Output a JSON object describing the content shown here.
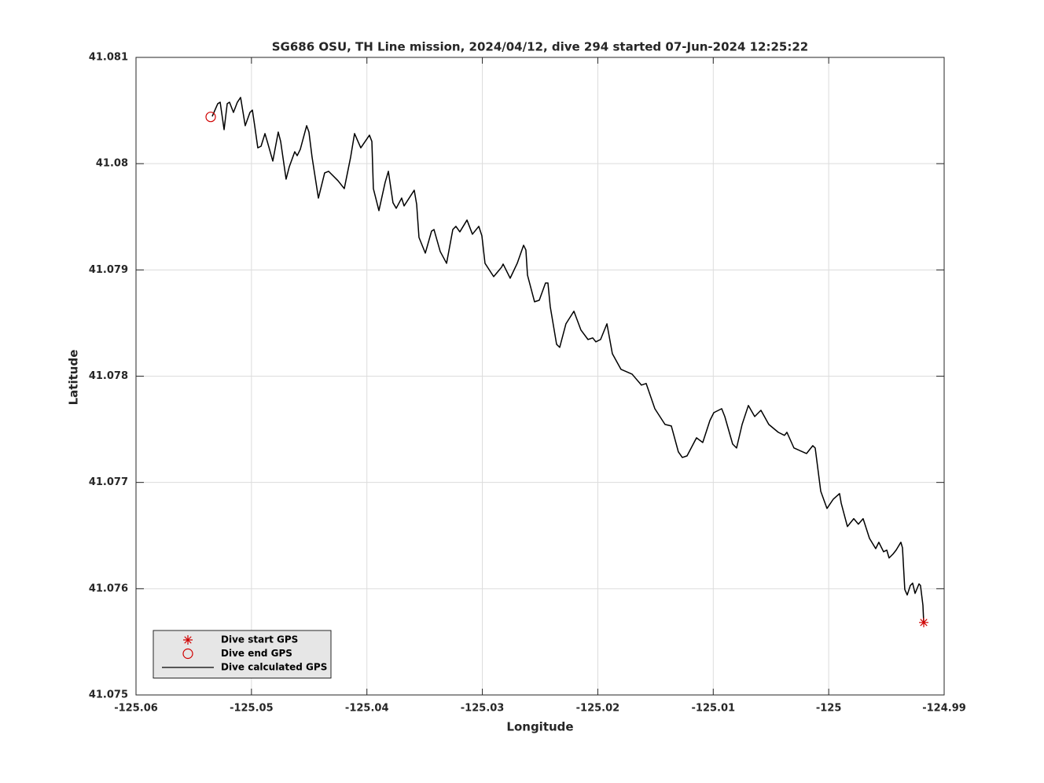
{
  "chart_data": {
    "type": "line",
    "title": "SG686 OSU, TH Line mission, 2024/04/12, dive 294 started 07-Jun-2024 12:25:22",
    "xlabel": "Longitude",
    "ylabel": "Latitude",
    "xlim": [
      -125.06,
      -124.99
    ],
    "xticks": [
      -125.06,
      -125.05,
      -125.04,
      -125.03,
      -125.02,
      -125.01,
      -125,
      -124.99
    ],
    "ylim": [
      41.075,
      41.081
    ],
    "yticks": [
      41.075,
      41.076,
      41.077,
      41.078,
      41.079,
      41.08,
      41.081
    ],
    "grid": true,
    "legend": "lower left",
    "series": [
      {
        "name": "Dive start GPS",
        "color": "#d00000",
        "marker": "*",
        "x": [
          -124.99177
        ],
        "values": [
          41.075682
        ]
      },
      {
        "name": "Dive end GPS",
        "color": "#d00000",
        "marker": "o",
        "x": [
          -125.05353
        ],
        "values": [
          41.08044
        ]
      },
      {
        "name": "Dive calculated GPS",
        "color": "#000000",
        "marker": "line",
        "x": [
          -125.0534,
          -125.05292,
          -125.05271,
          -125.05237,
          -125.0521,
          -125.0519,
          -125.05156,
          -125.05122,
          -125.05094,
          -125.05054,
          -125.05013,
          -125.04992,
          -125.04972,
          -125.04945,
          -125.04917,
          -125.04883,
          -125.04863,
          -125.04815,
          -125.04768,
          -125.04747,
          -125.047,
          -125.04672,
          -125.04625,
          -125.04604,
          -125.04577,
          -125.04522,
          -125.04502,
          -125.04475,
          -125.0442,
          -125.04366,
          -125.04332,
          -125.0425,
          -125.04196,
          -125.04141,
          -125.04107,
          -125.04053,
          -125.03978,
          -125.03957,
          -125.03944,
          -125.03896,
          -125.03842,
          -125.03814,
          -125.03774,
          -125.03746,
          -125.03699,
          -125.03678,
          -125.0359,
          -125.03569,
          -125.03549,
          -125.03494,
          -125.0344,
          -125.03419,
          -125.03365,
          -125.0331,
          -125.03256,
          -125.03229,
          -125.03195,
          -125.03133,
          -125.03086,
          -125.03031,
          -125.03004,
          -125.02977,
          -125.02902,
          -125.02834,
          -125.0282,
          -125.02759,
          -125.02698,
          -125.02643,
          -125.02623,
          -125.02609,
          -125.02548,
          -125.02507,
          -125.02453,
          -125.02432,
          -125.02412,
          -125.02357,
          -125.0233,
          -125.02276,
          -125.02207,
          -125.02146,
          -125.02085,
          -125.02044,
          -125.02017,
          -125.01976,
          -125.01921,
          -125.01901,
          -125.01874,
          -125.01799,
          -125.01703,
          -125.01622,
          -125.01581,
          -125.01506,
          -125.01418,
          -125.01363,
          -125.01302,
          -125.01268,
          -125.01227,
          -125.01145,
          -125.01091,
          -125.01029,
          -125.00995,
          -125.00927,
          -125.009,
          -125.00832,
          -125.00798,
          -125.0075,
          -125.00696,
          -125.00641,
          -125.00587,
          -125.00519,
          -125.00437,
          -125.00383,
          -125.00362,
          -125.00301,
          -125.00192,
          -125.00138,
          -125.00117,
          -125.00069,
          -125.00015,
          -124.9996,
          -124.99906,
          -124.99892,
          -124.99838,
          -124.99783,
          -124.99743,
          -124.99702,
          -124.99647,
          -124.99593,
          -124.99566,
          -124.99525,
          -124.99497,
          -124.99477,
          -124.99443,
          -124.99416,
          -124.99375,
          -124.99361,
          -124.99341,
          -124.9932,
          -124.99293,
          -124.99273,
          -124.99252,
          -124.99218,
          -124.99205,
          -124.99184,
          -124.99177
        ],
        "values": [
          41.080445,
          41.080564,
          41.080578,
          41.08032,
          41.080564,
          41.080578,
          41.080482,
          41.080578,
          41.080623,
          41.080357,
          41.080482,
          41.080504,
          41.080357,
          41.080149,
          41.080164,
          41.080283,
          41.080209,
          41.080024,
          41.080297,
          41.080209,
          41.079854,
          41.079972,
          41.080112,
          41.080075,
          41.080135,
          41.080357,
          41.080297,
          41.080061,
          41.079676,
          41.079913,
          41.079928,
          41.079839,
          41.079765,
          41.080061,
          41.080283,
          41.080149,
          41.080268,
          41.080209,
          41.079765,
          41.079558,
          41.079824,
          41.079928,
          41.079632,
          41.07958,
          41.079676,
          41.079602,
          41.07975,
          41.079617,
          41.079306,
          41.079158,
          41.079365,
          41.07938,
          41.079173,
          41.079062,
          41.07938,
          41.07941,
          41.079358,
          41.079469,
          41.079336,
          41.07941,
          41.079321,
          41.079062,
          41.078937,
          41.079025,
          41.079055,
          41.078922,
          41.079062,
          41.079232,
          41.079188,
          41.078951,
          41.0787,
          41.078715,
          41.078877,
          41.078877,
          41.078655,
          41.0783,
          41.078271,
          41.078493,
          41.078611,
          41.078434,
          41.078345,
          41.07836,
          41.078323,
          41.078345,
          41.078493,
          41.078374,
          41.078212,
          41.078064,
          41.078019,
          41.077916,
          41.077931,
          41.077694,
          41.077546,
          41.077531,
          41.077287,
          41.077235,
          41.07725,
          41.07742,
          41.077376,
          41.077583,
          41.077657,
          41.077694,
          41.07762,
          41.077361,
          41.077324,
          41.077546,
          41.077724,
          41.07762,
          41.077679,
          41.077546,
          41.077472,
          41.077443,
          41.077472,
          41.077324,
          41.077272,
          41.077346,
          41.077324,
          41.076917,
          41.076755,
          41.076843,
          41.076895,
          41.076806,
          41.076585,
          41.076659,
          41.076607,
          41.076659,
          41.076474,
          41.076377,
          41.076437,
          41.076348,
          41.076363,
          41.076289,
          41.076326,
          41.076363,
          41.076437,
          41.076385,
          41.075993,
          41.075941,
          41.07603,
          41.076052,
          41.075956,
          41.076045,
          41.07603,
          41.075845,
          41.075682
        ]
      }
    ]
  }
}
